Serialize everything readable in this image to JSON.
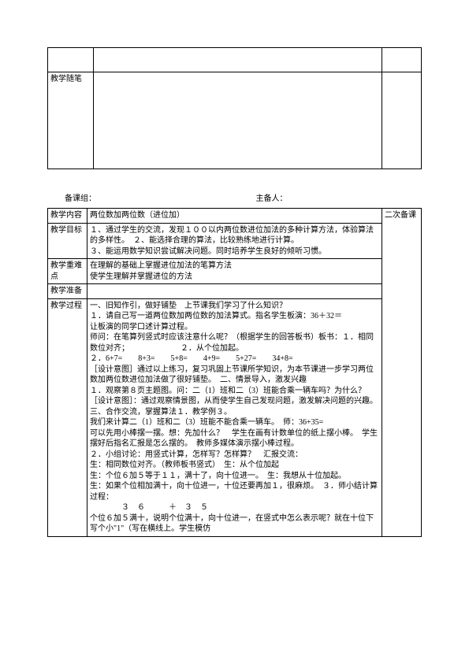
{
  "notesTable": {
    "row2_label": "教学随笔"
  },
  "meta": {
    "group": "备课组：",
    "host": "主备人："
  },
  "lesson": {
    "content_label": "教学内容",
    "content_value": "两位数加两位数（进位加）",
    "secondary_label": "二次备课",
    "objective_label": "教学目标",
    "objective_value": "１、通过学生的交流，发现１００以内两位数进位加法的多种计算方法，体验算法的多样性。　２、能选择合理的算法，比较熟练地进行计算。\n３、能运用数学知识尝试解决问题。同时培养学生良好的倾听习惯。",
    "keypoint_label": "教学重难点",
    "keypoint_value": "在理解的基础上掌握进位加法的笔算方法\n使学生理解并掌握进位的方法",
    "prep_label": "教学准备",
    "process_label": "教学过程",
    "process_value": "一、旧知作引，做好铺垫　上节课我们学习了什么知识？\n１．请自己写一道两位数加两位数的加法算式。指名学生板演：36＋32＝\n让板演的同学口述计算过程。\n师问：在笔算列竖式时应该注意什么呢？（根据学生的回答板书）板书：１．相同数位对齐；　　　　　　　２．从个位加起。\n２．6+7=　　8+3=　　5+8=　　4+9=　　5+27=　　34+8=\n［设计意图］通过以上练习，复习巩固上节课所学知识，为本节课进一步学习两位数加两位数进位加法做了很好铺垫。　二、情景导入，激发兴趣\n１．观察第８页主题图。问：二（1）班和二（3）班能合乘一辆车吗？为什么？　［设计意图］：通过观察情景图，从而使学生自己发现问题，激发解决问题的兴趣。　三、合作交流，掌握算法１．教学例３。\n我们来计算二（1）班和二（3）班能不能合乘一辆车。　师：36+35=\n可以先用小棒摆一摆。想：先加什么？　学生在画有计数单位的纸上摆小棒。　学生摆好后指名汇报是怎么摆的。　教师多媒体演示摆小棒过程。\n２．小组讨论：用竖式计算，怎样写？怎样算？　汇报交流：\n生：相同数位对齐。（教师板书竖式）　生：从个位加起\n生：个位６加５等于１１，满十了，向十位进一。　生：我想从十位加起。\n生：如果个位相加满十，向十位进一，十位还要再加１，很麻烦。　３．师小结计算过程：\n　　　　３　６　　　＋　３　５\n个位６加５满十，说明个位满十，向十位进一，在竖式中怎么表示呢？就在十位下写个小\"1\"（写在横线上。学生模仿"
  }
}
